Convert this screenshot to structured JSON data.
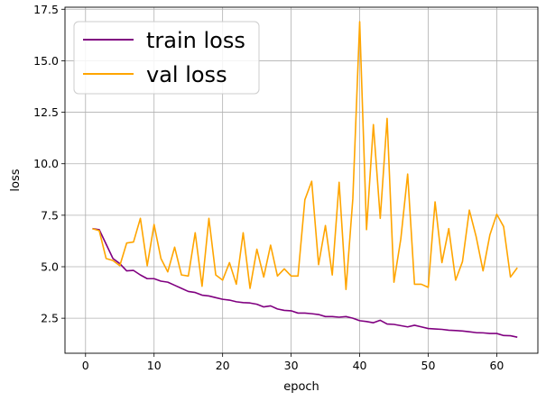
{
  "chart_data": {
    "type": "line",
    "xlabel": "epoch",
    "ylabel": "loss",
    "xlim": [
      -3,
      66
    ],
    "ylim": [
      0.8,
      17.6
    ],
    "xticks": [
      0,
      10,
      20,
      30,
      40,
      50,
      60
    ],
    "yticks": [
      2.5,
      5.0,
      7.5,
      10.0,
      12.5,
      15.0,
      17.5
    ],
    "xtick_labels": [
      "0",
      "10",
      "20",
      "30",
      "40",
      "50",
      "60"
    ],
    "ytick_labels": [
      "2.5",
      "5.0",
      "7.5",
      "10.0",
      "12.5",
      "15.0",
      "17.5"
    ],
    "grid": true,
    "legend_position": "top-left",
    "series": [
      {
        "name": "train loss",
        "color": "#800080",
        "x": [
          1,
          2,
          3,
          4,
          5,
          6,
          7,
          8,
          9,
          10,
          11,
          12,
          13,
          14,
          15,
          16,
          17,
          18,
          19,
          20,
          21,
          22,
          23,
          24,
          25,
          26,
          27,
          28,
          29,
          30,
          31,
          32,
          33,
          34,
          35,
          36,
          37,
          38,
          39,
          40,
          41,
          42,
          43,
          44,
          45,
          46,
          47,
          48,
          49,
          50,
          51,
          52,
          53,
          54,
          55,
          56,
          57,
          58,
          59,
          60,
          61,
          62,
          63
        ],
        "values": [
          6.85,
          6.8,
          6.1,
          5.4,
          5.15,
          4.8,
          4.82,
          4.6,
          4.42,
          4.42,
          4.3,
          4.25,
          4.1,
          3.95,
          3.8,
          3.75,
          3.62,
          3.58,
          3.5,
          3.42,
          3.38,
          3.3,
          3.26,
          3.24,
          3.18,
          3.05,
          3.1,
          2.95,
          2.88,
          2.86,
          2.75,
          2.75,
          2.72,
          2.68,
          2.58,
          2.58,
          2.55,
          2.58,
          2.5,
          2.38,
          2.34,
          2.28,
          2.4,
          2.22,
          2.2,
          2.14,
          2.08,
          2.16,
          2.08,
          2.0,
          1.98,
          1.96,
          1.92,
          1.9,
          1.88,
          1.84,
          1.8,
          1.79,
          1.76,
          1.76,
          1.66,
          1.65,
          1.58
        ]
      },
      {
        "name": "val loss",
        "color": "#ffa500",
        "x": [
          1,
          2,
          3,
          4,
          5,
          6,
          7,
          8,
          9,
          10,
          11,
          12,
          13,
          14,
          15,
          16,
          17,
          18,
          19,
          20,
          21,
          22,
          23,
          24,
          25,
          26,
          27,
          28,
          29,
          30,
          31,
          32,
          33,
          34,
          35,
          36,
          37,
          38,
          39,
          40,
          41,
          42,
          43,
          44,
          45,
          46,
          47,
          48,
          49,
          50,
          51,
          52,
          53,
          54,
          55,
          56,
          57,
          58,
          59,
          60,
          61,
          62,
          63
        ],
        "values": [
          6.85,
          6.75,
          5.4,
          5.3,
          5.05,
          6.15,
          6.2,
          7.35,
          5.05,
          7.05,
          5.4,
          4.75,
          5.95,
          4.6,
          4.55,
          6.65,
          4.05,
          7.35,
          4.6,
          4.35,
          5.2,
          4.15,
          6.65,
          3.95,
          5.85,
          4.5,
          6.05,
          4.55,
          4.9,
          4.55,
          4.55,
          8.25,
          9.15,
          5.1,
          7.0,
          4.6,
          9.1,
          3.9,
          8.3,
          16.9,
          6.8,
          11.9,
          7.35,
          12.2,
          4.25,
          6.35,
          9.5,
          4.15,
          4.15,
          4.0,
          8.15,
          5.2,
          6.85,
          4.35,
          5.25,
          7.75,
          6.45,
          4.8,
          6.55,
          7.55,
          6.95,
          4.5,
          4.95
        ]
      }
    ]
  }
}
